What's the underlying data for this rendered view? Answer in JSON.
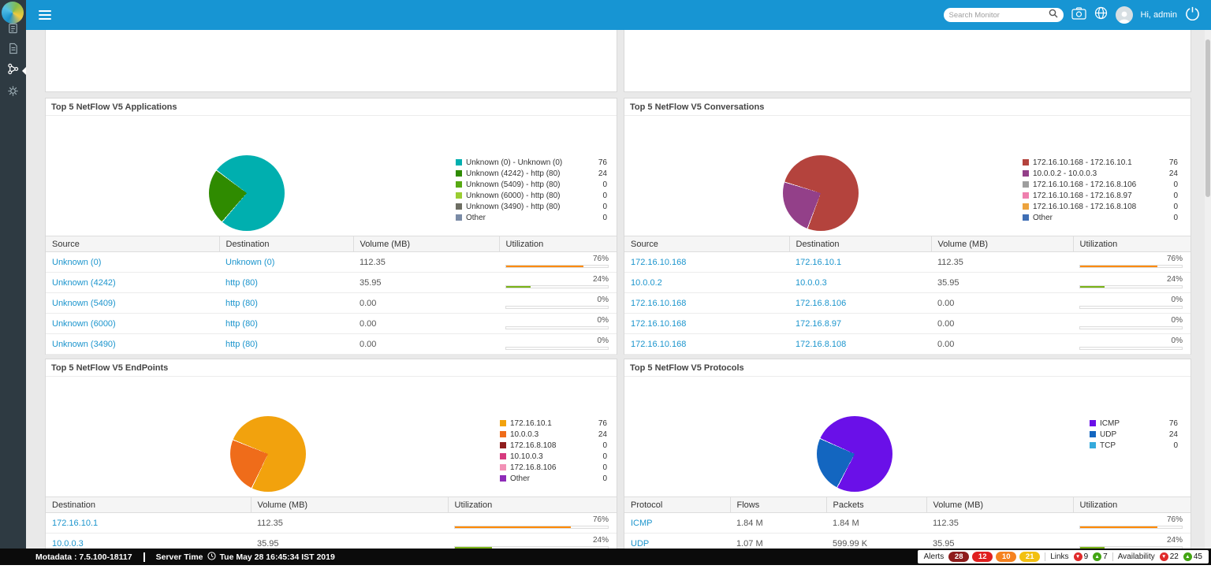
{
  "topbar": {
    "search_placeholder": "Search Monitor",
    "greeting": "Hi, admin"
  },
  "panels": [
    {
      "title": "Top 5 NetFlow V5 Applications",
      "pie": {
        "base": "#00afaf",
        "slice": "#2f8b00",
        "start": 220,
        "sweep": 86.4
      },
      "legend": [
        {
          "label": "Unknown (0) - Unknown (0)",
          "value": "76",
          "color": "#00afaf"
        },
        {
          "label": "Unknown (4242) - http (80)",
          "value": "24",
          "color": "#2f8b00"
        },
        {
          "label": "Unknown (5409) - http (80)",
          "value": "0",
          "color": "#57a913"
        },
        {
          "label": "Unknown (6000) - http (80)",
          "value": "0",
          "color": "#9acd32"
        },
        {
          "label": "Unknown (3490) - http (80)",
          "value": "0",
          "color": "#6d6e63"
        },
        {
          "label": "Other",
          "value": "0",
          "color": "#7a8ba6"
        }
      ],
      "table": {
        "columns": [
          "Source",
          "Destination",
          "Volume (MB)",
          "Utilization"
        ],
        "rows": [
          {
            "cells": [
              {
                "t": "Unknown (0)",
                "link": true
              },
              {
                "t": "Unknown (0)",
                "link": true
              },
              {
                "t": "112.35",
                "link": false
              }
            ],
            "util": {
              "pct": 76,
              "color": "#ff8a00"
            }
          },
          {
            "cells": [
              {
                "t": "Unknown (4242)",
                "link": true
              },
              {
                "t": "http (80)",
                "link": true
              },
              {
                "t": "35.95",
                "link": false
              }
            ],
            "util": {
              "pct": 24,
              "color": "#7ab317"
            }
          },
          {
            "cells": [
              {
                "t": "Unknown (5409)",
                "link": true
              },
              {
                "t": "http (80)",
                "link": true
              },
              {
                "t": "0.00",
                "link": false
              }
            ],
            "util": {
              "pct": 0,
              "color": "#7ab317"
            }
          },
          {
            "cells": [
              {
                "t": "Unknown (6000)",
                "link": true
              },
              {
                "t": "http (80)",
                "link": true
              },
              {
                "t": "0.00",
                "link": false
              }
            ],
            "util": {
              "pct": 0,
              "color": "#7ab317"
            }
          },
          {
            "cells": [
              {
                "t": "Unknown (3490)",
                "link": true
              },
              {
                "t": "http (80)",
                "link": true
              },
              {
                "t": "0.00",
                "link": false
              }
            ],
            "util": {
              "pct": 0,
              "color": "#7ab317"
            }
          }
        ]
      }
    },
    {
      "title": "Top 5 NetFlow V5 Conversations",
      "pie": {
        "base": "#b4433d",
        "slice": "#934089",
        "start": 200,
        "sweep": 86.4
      },
      "legend": [
        {
          "label": "172.16.10.168 - 172.16.10.1",
          "value": "76",
          "color": "#b4433d"
        },
        {
          "label": "10.0.0.2 - 10.0.0.3",
          "value": "24",
          "color": "#934089"
        },
        {
          "label": "172.16.10.168 - 172.16.8.106",
          "value": "0",
          "color": "#9e9e9e"
        },
        {
          "label": "172.16.10.168 - 172.16.8.97",
          "value": "0",
          "color": "#ef7fae"
        },
        {
          "label": "172.16.10.168 - 172.16.8.108",
          "value": "0",
          "color": "#eda33d"
        },
        {
          "label": "Other",
          "value": "0",
          "color": "#3f6fb5"
        }
      ],
      "table": {
        "columns": [
          "Source",
          "Destination",
          "Volume (MB)",
          "Utilization"
        ],
        "rows": [
          {
            "cells": [
              {
                "t": "172.16.10.168",
                "link": true
              },
              {
                "t": "172.16.10.1",
                "link": true
              },
              {
                "t": "112.35",
                "link": false
              }
            ],
            "util": {
              "pct": 76,
              "color": "#ff8a00"
            }
          },
          {
            "cells": [
              {
                "t": "10.0.0.2",
                "link": true
              },
              {
                "t": "10.0.0.3",
                "link": true
              },
              {
                "t": "35.95",
                "link": false
              }
            ],
            "util": {
              "pct": 24,
              "color": "#7ab317"
            }
          },
          {
            "cells": [
              {
                "t": "172.16.10.168",
                "link": true
              },
              {
                "t": "172.16.8.106",
                "link": true
              },
              {
                "t": "0.00",
                "link": false
              }
            ],
            "util": {
              "pct": 0,
              "color": "#7ab317"
            }
          },
          {
            "cells": [
              {
                "t": "172.16.10.168",
                "link": true
              },
              {
                "t": "172.16.8.97",
                "link": true
              },
              {
                "t": "0.00",
                "link": false
              }
            ],
            "util": {
              "pct": 0,
              "color": "#7ab317"
            }
          },
          {
            "cells": [
              {
                "t": "172.16.10.168",
                "link": true
              },
              {
                "t": "172.16.8.108",
                "link": true
              },
              {
                "t": "0.00",
                "link": false
              }
            ],
            "util": {
              "pct": 0,
              "color": "#7ab317"
            }
          }
        ]
      }
    },
    {
      "title": "Top 5 NetFlow V5 EndPoints",
      "pie": {
        "base": "#f2a20d",
        "slice": "#ef6c1a",
        "start": 205,
        "sweep": 86.4
      },
      "legend": [
        {
          "label": "172.16.10.1",
          "value": "76",
          "color": "#f2a20d"
        },
        {
          "label": "10.0.0.3",
          "value": "24",
          "color": "#ef6c1a"
        },
        {
          "label": "172.16.8.108",
          "value": "0",
          "color": "#8f1d1d"
        },
        {
          "label": "10.10.0.3",
          "value": "0",
          "color": "#d63a7e"
        },
        {
          "label": "172.16.8.106",
          "value": "0",
          "color": "#f291b6"
        },
        {
          "label": "Other",
          "value": "0",
          "color": "#8e2bb8"
        }
      ],
      "table": {
        "columns": [
          "Destination",
          "Volume (MB)",
          "Utilization"
        ],
        "rows": [
          {
            "cells": [
              {
                "t": "172.16.10.1",
                "link": true
              },
              {
                "t": "112.35",
                "link": false
              }
            ],
            "util": {
              "pct": 76,
              "color": "#ff8a00"
            }
          },
          {
            "cells": [
              {
                "t": "10.0.0.3",
                "link": true
              },
              {
                "t": "35.95",
                "link": false
              }
            ],
            "util": {
              "pct": 24,
              "color": "#7ab317"
            }
          }
        ]
      }
    },
    {
      "title": "Top 5 NetFlow V5 Protocols",
      "pie": {
        "base": "#6a10e8",
        "slice": "#1366c0",
        "start": 207,
        "sweep": 86.4
      },
      "legend": [
        {
          "label": "ICMP",
          "value": "76",
          "color": "#6a10e8"
        },
        {
          "label": "UDP",
          "value": "24",
          "color": "#1366c0"
        },
        {
          "label": "TCP",
          "value": "0",
          "color": "#35aadc"
        }
      ],
      "table": {
        "columns": [
          "Protocol",
          "Flows",
          "Packets",
          "Volume (MB)",
          "Utilization"
        ],
        "rows": [
          {
            "cells": [
              {
                "t": "ICMP",
                "link": true
              },
              {
                "t": "1.84 M",
                "link": false
              },
              {
                "t": "1.84 M",
                "link": false
              },
              {
                "t": "112.35",
                "link": false
              }
            ],
            "util": {
              "pct": 76,
              "color": "#ff8a00"
            }
          },
          {
            "cells": [
              {
                "t": "UDP",
                "link": true
              },
              {
                "t": "1.07 M",
                "link": false
              },
              {
                "t": "599.99 K",
                "link": false
              },
              {
                "t": "35.95",
                "link": false
              }
            ],
            "util": {
              "pct": 24,
              "color": "#7ab317"
            }
          }
        ]
      }
    }
  ],
  "statusbar": {
    "product": "Motadata : 7.5.100-18117",
    "server_time_label": "Server Time",
    "server_time": "Tue May 28 16:45:34 IST 2019",
    "alerts_label": "Alerts",
    "alerts": [
      {
        "count": "28",
        "color": "#8e1c1c"
      },
      {
        "count": "12",
        "color": "#e02020"
      },
      {
        "count": "10",
        "color": "#f58220"
      },
      {
        "count": "21",
        "color": "#f2c011"
      }
    ],
    "links_label": "Links",
    "links": [
      {
        "count": "9",
        "dir": "down"
      },
      {
        "count": "7",
        "dir": "up"
      }
    ],
    "availability_label": "Availability",
    "availability": [
      {
        "count": "22",
        "dir": "down"
      },
      {
        "count": "45",
        "dir": "up"
      }
    ],
    "down_color": "#e02b2b",
    "up_color": "#43a513"
  },
  "chart_data": [
    {
      "type": "pie",
      "title": "Top 5 NetFlow V5 Applications",
      "labels": [
        "Unknown (0) - Unknown (0)",
        "Unknown (4242) - http (80)",
        "Unknown (5409) - http (80)",
        "Unknown (6000) - http (80)",
        "Unknown (3490) - http (80)",
        "Other"
      ],
      "values": [
        76,
        24,
        0,
        0,
        0,
        0
      ],
      "colors": [
        "#00afaf",
        "#2f8b00",
        "#57a913",
        "#9acd32",
        "#6d6e63",
        "#7a8ba6"
      ],
      "legend_position": "right"
    },
    {
      "type": "pie",
      "title": "Top 5 NetFlow V5 Conversations",
      "labels": [
        "172.16.10.168 - 172.16.10.1",
        "10.0.0.2 - 10.0.0.3",
        "172.16.10.168 - 172.16.8.106",
        "172.16.10.168 - 172.16.8.97",
        "172.16.10.168 - 172.16.8.108",
        "Other"
      ],
      "values": [
        76,
        24,
        0,
        0,
        0,
        0
      ],
      "colors": [
        "#b4433d",
        "#934089",
        "#9e9e9e",
        "#ef7fae",
        "#eda33d",
        "#3f6fb5"
      ],
      "legend_position": "right"
    },
    {
      "type": "pie",
      "title": "Top 5 NetFlow V5 EndPoints",
      "labels": [
        "172.16.10.1",
        "10.0.0.3",
        "172.16.8.108",
        "10.10.0.3",
        "172.16.8.106",
        "Other"
      ],
      "values": [
        76,
        24,
        0,
        0,
        0,
        0
      ],
      "colors": [
        "#f2a20d",
        "#ef6c1a",
        "#8f1d1d",
        "#d63a7e",
        "#f291b6",
        "#8e2bb8"
      ],
      "legend_position": "right"
    },
    {
      "type": "pie",
      "title": "Top 5 NetFlow V5 Protocols",
      "labels": [
        "ICMP",
        "UDP",
        "TCP"
      ],
      "values": [
        76,
        24,
        0
      ],
      "colors": [
        "#6a10e8",
        "#1366c0",
        "#35aadc"
      ],
      "legend_position": "right"
    }
  ]
}
